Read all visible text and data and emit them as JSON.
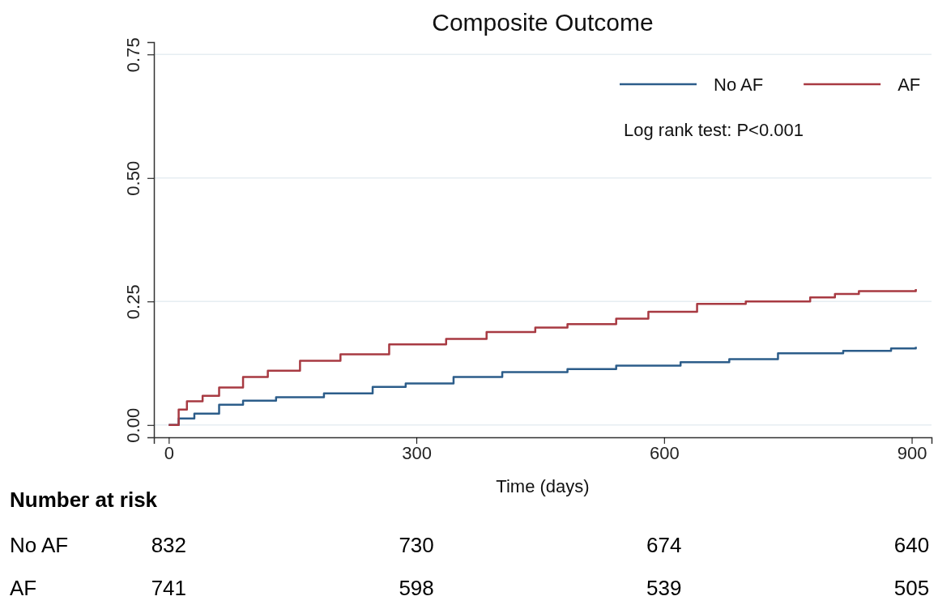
{
  "chart_data": {
    "type": "step",
    "title": "Composite Outcome",
    "xlabel": "Time (days)",
    "xlim": [
      -18,
      924
    ],
    "xticks": [
      0,
      300,
      600,
      900
    ],
    "ylim": [
      -0.025,
      0.775
    ],
    "yticks": [
      {
        "value": 0,
        "label": "0.00"
      },
      {
        "value": 0.25,
        "label": "0.25"
      },
      {
        "value": 0.5,
        "label": "0.50"
      },
      {
        "value": 0.75,
        "label": "0.75"
      }
    ],
    "grid": "y",
    "legend": "top right",
    "series": [
      {
        "name": "No AF",
        "color": "#2c5d8a",
        "x": [
          0,
          12,
          31,
          61,
          90,
          130,
          188,
          247,
          287,
          345,
          404,
          483,
          542,
          620,
          679,
          738,
          817,
          875,
          905
        ],
        "values": [
          0,
          0.013,
          0.023,
          0.041,
          0.049,
          0.056,
          0.064,
          0.077,
          0.084,
          0.097,
          0.107,
          0.113,
          0.12,
          0.127,
          0.133,
          0.145,
          0.15,
          0.155,
          0.158
        ]
      },
      {
        "name": "AF",
        "color": "#a83a42",
        "x": [
          0,
          12,
          22,
          41,
          61,
          90,
          120,
          159,
          208,
          267,
          336,
          385,
          444,
          483,
          542,
          581,
          640,
          699,
          777,
          807,
          836,
          905
        ],
        "values": [
          0,
          0.031,
          0.048,
          0.059,
          0.076,
          0.097,
          0.11,
          0.13,
          0.143,
          0.163,
          0.174,
          0.188,
          0.197,
          0.204,
          0.215,
          0.229,
          0.245,
          0.25,
          0.258,
          0.265,
          0.271,
          0.275
        ]
      }
    ],
    "annotations": [
      "Log rank test: P<0.001",
      "Number at risk",
      "No AF",
      "832",
      "730",
      "674",
      "640",
      "AF",
      "741",
      "598",
      "539",
      "505"
    ]
  }
}
